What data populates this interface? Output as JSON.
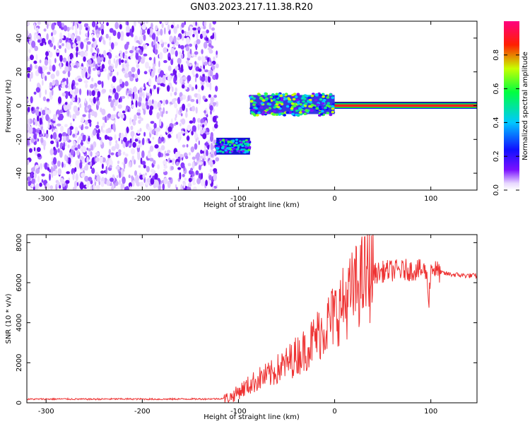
{
  "figure": {
    "title": "GN03.2023.217.11.38.R20"
  },
  "chart_data": [
    {
      "type": "heatmap",
      "title": "GN03.2023.217.11.38.R20",
      "xlabel": "Height of straight line (km)",
      "ylabel": "Frequency (Hz)",
      "xlim": [
        -320,
        148
      ],
      "ylim": [
        -50,
        50
      ],
      "xticks": [
        -300,
        -200,
        -100,
        0,
        100
      ],
      "yticks": [
        -40,
        -20,
        0,
        20,
        40
      ],
      "colorbar": {
        "label": "Normalized spectral amplitude",
        "range": [
          0,
          1
        ],
        "ticks": [
          0.0,
          0.2,
          0.4,
          0.6,
          0.8
        ],
        "tick_labels": [
          "0.0",
          "0.2",
          "0.4",
          "0.6",
          "0.8"
        ],
        "colormap": [
          "#ffffff",
          "#e8d8ff",
          "#7a10ff",
          "#1010ff",
          "#00c8ff",
          "#00ff40",
          "#c8ff00",
          "#ff2000",
          "#ff0080"
        ]
      },
      "regions": [
        {
          "name": "broadband noise",
          "x": [
            -320,
            -122
          ],
          "f": [
            -50,
            50
          ],
          "amplitude": 0.05
        },
        {
          "name": "tone at -24 Hz",
          "x": [
            -123,
            -88
          ],
          "f": [
            -29,
            -19
          ],
          "amplitude": 0.35
        },
        {
          "name": "tone near 0 Hz",
          "x": [
            -88,
            0
          ],
          "f": [
            -5,
            8
          ],
          "amplitude": 0.4
        },
        {
          "name": "tone at 0 Hz",
          "x": [
            0,
            148
          ],
          "f": [
            -1,
            1
          ],
          "amplitude": 0.95
        }
      ]
    },
    {
      "type": "line",
      "xlabel": "Height of straight line (km)",
      "ylabel": "SNR (10 * v/v)",
      "xlim": [
        -320,
        148
      ],
      "ylim": [
        0,
        8400
      ],
      "xticks": [
        -300,
        -200,
        -100,
        0,
        100
      ],
      "yticks": [
        0,
        2000,
        4000,
        6000,
        8000
      ],
      "line_color": "#ee3333",
      "series": [
        {
          "x": [
            -320,
            -300,
            -280,
            -260,
            -240,
            -220,
            -200,
            -180,
            -160,
            -140,
            -120,
            -110,
            -105,
            -100,
            -95,
            -90,
            -85,
            -80,
            -75,
            -70,
            -65,
            -60,
            -55,
            -50,
            -45,
            -40,
            -35,
            -30,
            -25,
            -20,
            -15,
            -10,
            -5,
            0,
            5,
            10,
            15,
            20,
            25,
            30,
            35,
            40,
            45,
            50,
            55,
            60,
            65,
            70,
            75,
            80,
            85,
            90,
            95,
            98,
            100,
            102,
            105,
            110,
            115,
            120,
            125,
            130,
            135,
            140,
            148
          ],
          "y": [
            180,
            185,
            190,
            180,
            185,
            190,
            185,
            180,
            190,
            190,
            200,
            260,
            360,
            560,
            700,
            850,
            1000,
            1150,
            1280,
            1350,
            1450,
            1650,
            1800,
            1950,
            2150,
            2350,
            2500,
            2700,
            2950,
            3250,
            3550,
            3800,
            4100,
            4400,
            4700,
            5000,
            5300,
            5650,
            5950,
            6200,
            6350,
            6450,
            6500,
            6550,
            6600,
            6600,
            6620,
            6600,
            6650,
            6600,
            6650,
            6600,
            6600,
            5200,
            6700,
            6800,
            6600,
            6500,
            6450,
            6420,
            6400,
            6380,
            6360,
            6350,
            6340
          ]
        }
      ]
    }
  ]
}
